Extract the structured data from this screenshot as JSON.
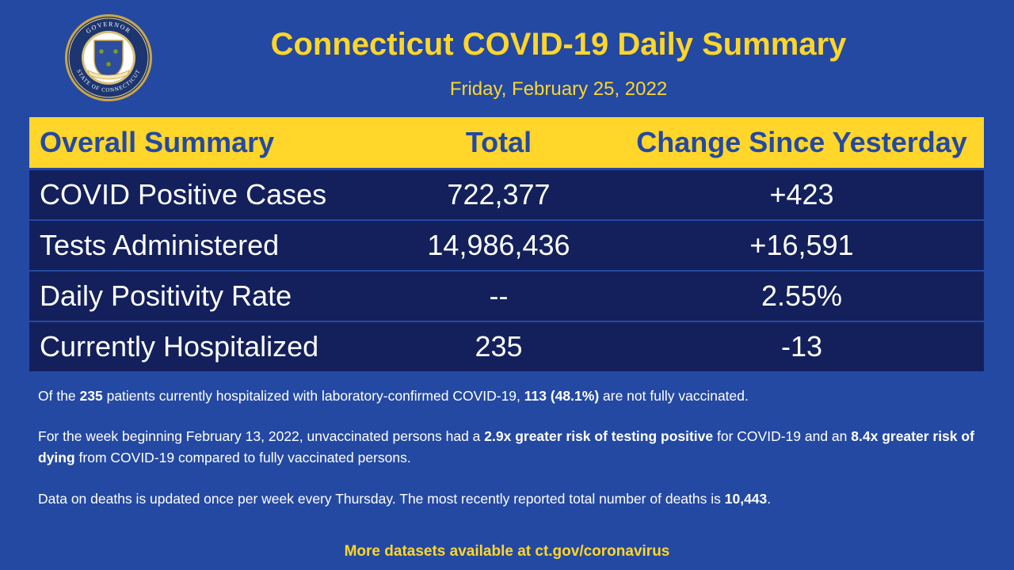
{
  "header": {
    "title": "Connecticut COVID-19 Daily Summary",
    "date": "Friday, February 25, 2022",
    "seal_text_top": "GOVERNOR",
    "seal_text_bottom": "STATE OF CONNECTICUT"
  },
  "table": {
    "columns": [
      "Overall Summary",
      "Total",
      "Change Since Yesterday"
    ],
    "rows": [
      {
        "label": "COVID Positive Cases",
        "total": "722,377",
        "change": "+423"
      },
      {
        "label": "Tests Administered",
        "total": "14,986,436",
        "change": "+16,591"
      },
      {
        "label": "Daily Positivity Rate",
        "total": "--",
        "change": "2.55%"
      },
      {
        "label": "Currently Hospitalized",
        "total": "235",
        "change": "-13"
      }
    ]
  },
  "notes": {
    "hospital": {
      "t1": "Of the ",
      "b1": "235",
      "t2": " patients currently hospitalized with laboratory-confirmed COVID-19, ",
      "b2": "113 (48.1%)",
      "t3": " are not fully vaccinated."
    },
    "risk": {
      "t1": "For the week beginning February 13, 2022, unvaccinated persons had a ",
      "b1": "2.9x greater risk of testing positive",
      "t2": " for COVID-19 and an ",
      "b2": "8.4x greater risk of dying",
      "t3": " from COVID-19 compared to fully vaccinated persons."
    },
    "deaths": {
      "t1": "Data on deaths is updated once per week every Thursday. The most recently reported total number of deaths is ",
      "b1": "10,443",
      "t2": "."
    }
  },
  "footer": {
    "text": "More datasets available at ct.gov/coronavirus"
  },
  "colors": {
    "background": "#2449a3",
    "accent": "#ffd629",
    "row_background": "#13205c"
  }
}
